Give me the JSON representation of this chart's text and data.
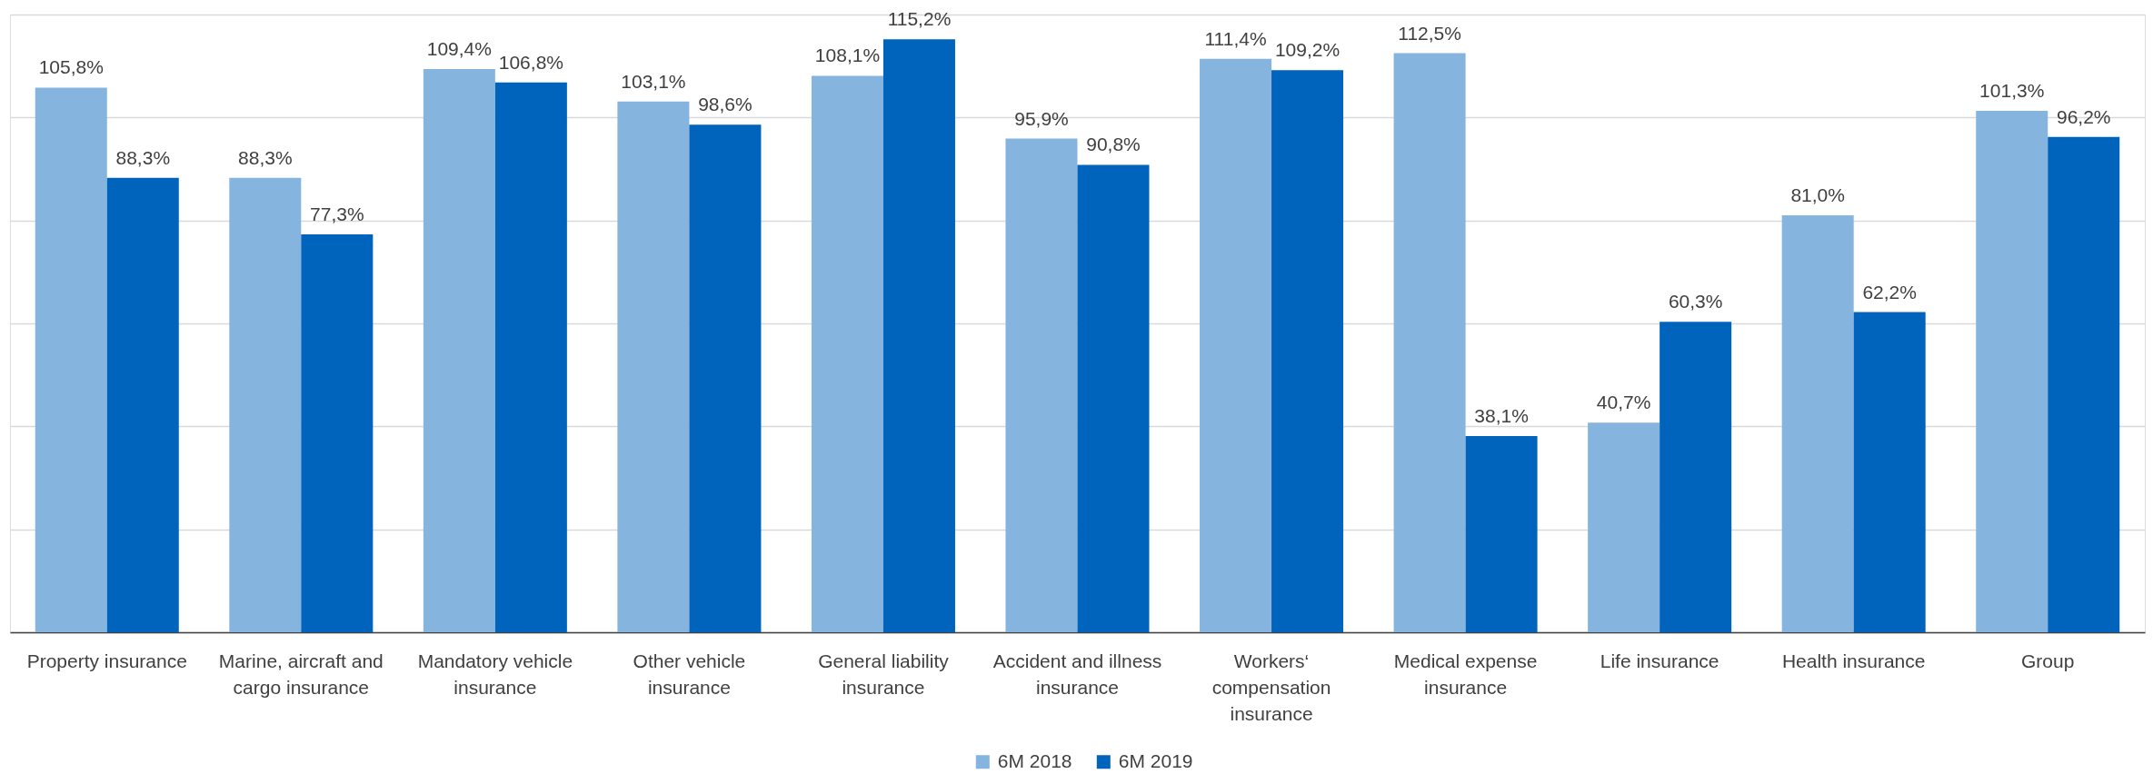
{
  "chart_data": {
    "type": "bar",
    "categories": [
      "Property insurance",
      "Marine, aircraft and cargo insurance",
      "Mandatory vehicle insurance",
      "Other vehicle insurance",
      "General liability insurance",
      "Accident and illness insurance",
      "Workers‘ compensation insurance",
      "Medical expense insurance",
      "Life insurance",
      "Health insurance",
      "Group"
    ],
    "series": [
      {
        "name": "6M 2018",
        "color": "#85b4df",
        "values": [
          105.8,
          88.3,
          109.4,
          103.1,
          108.1,
          95.9,
          111.4,
          112.5,
          40.7,
          81.0,
          101.3
        ],
        "value_labels": [
          "105,8%",
          "88,3%",
          "109,4%",
          "103,1%",
          "108,1%",
          "95,9%",
          "111,4%",
          "112,5%",
          "40,7%",
          "81,0%",
          "101,3%"
        ]
      },
      {
        "name": "6M 2019",
        "color": "#0064bd",
        "values": [
          88.3,
          77.3,
          106.8,
          98.6,
          115.2,
          90.8,
          109.2,
          38.1,
          60.3,
          62.2,
          96.2
        ],
        "value_labels": [
          "88,3%",
          "77,3%",
          "106,8%",
          "98,6%",
          "115,2%",
          "90,8%",
          "109,2%",
          "38,1%",
          "60,3%",
          "62,2%",
          "96,2%"
        ]
      }
    ],
    "ylim": [
      0,
      120
    ],
    "yticks": [
      {
        "value": 0,
        "label": null
      },
      {
        "value": 20,
        "label": null
      },
      {
        "value": 40,
        "label": null
      },
      {
        "value": 60,
        "label": null
      },
      {
        "value": 80,
        "label": null
      },
      {
        "value": 100,
        "label": null
      },
      {
        "value": 120,
        "label": null
      }
    ],
    "grid": "y",
    "legend": "bottom",
    "tick_labels": "x"
  }
}
